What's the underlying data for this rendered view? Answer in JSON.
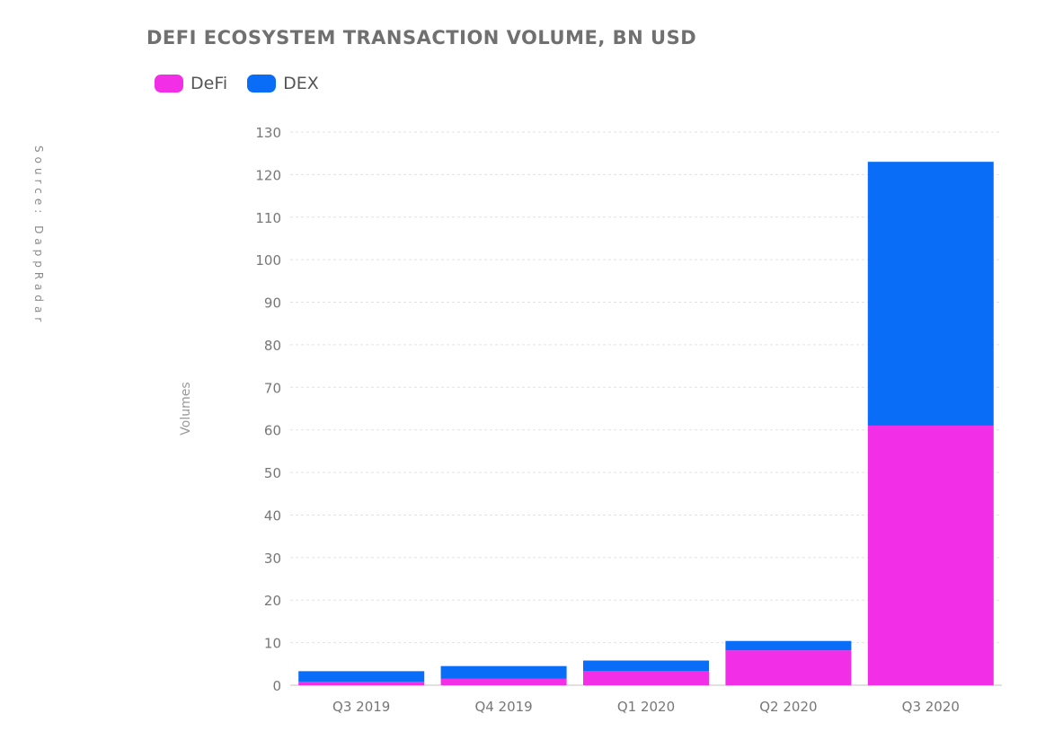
{
  "source_note": "Source: DappRadar",
  "colors": {
    "defi": "#f22fe6",
    "dex": "#0a6df8",
    "grid": "#e2e2e2",
    "tick": "#777777"
  },
  "chart_data": {
    "type": "bar",
    "stacked": true,
    "title": "DEFI ECOSYSTEM TRANSACTION VOLUME, BN USD",
    "ylabel": "Volumes",
    "xlabel": "",
    "categories": [
      "Q3 2019",
      "Q4 2019",
      "Q1 2020",
      "Q2 2020",
      "Q3 2020"
    ],
    "series": [
      {
        "name": "DeFi",
        "values": [
          0.8,
          1.5,
          3.3,
          8.2,
          61
        ]
      },
      {
        "name": "DEX",
        "values": [
          2.5,
          3.0,
          2.5,
          2.2,
          62
        ]
      }
    ],
    "ylim": [
      0,
      130
    ],
    "yticks": [
      0,
      10,
      20,
      30,
      40,
      50,
      60,
      70,
      80,
      90,
      100,
      110,
      120,
      130
    ],
    "grid": true,
    "legend_position": "top-left"
  }
}
